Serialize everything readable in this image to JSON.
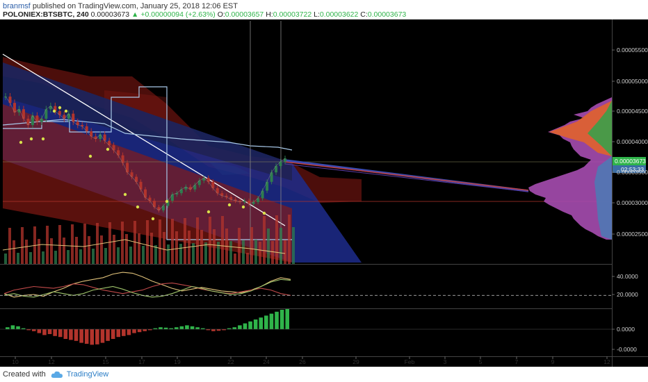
{
  "header": {
    "author": "branmsf",
    "published": "published on TradingView.com, January 25, 2018 12:06 EST",
    "symbol": "POLONIEX:BTSBTC, 240",
    "price": "0.00003673",
    "change": "+0.00000094 (+2.63%)",
    "open_label": "O:",
    "open": "0.00003657",
    "high_label": "H:",
    "high": "0.00003722",
    "low_label": "L:",
    "low": "0.00003622",
    "close_label": "C:",
    "close": "0.00003673"
  },
  "chart_data": {
    "type": "line",
    "main_axis": {
      "ticks": [
        "0.00005500",
        "0.00005000",
        "0.00004500",
        "0.00004000",
        "0.00003500",
        "0.00003000",
        "0.00002500"
      ],
      "price_tag": "0.00003673",
      "countdown": "02:53:33"
    },
    "indicator1_axis": {
      "ticks": [
        "40.0000",
        "20.0000"
      ]
    },
    "indicator2_axis": {
      "ticks": [
        "0.0000",
        "-0.0000"
      ]
    },
    "x_axis": {
      "ticks": [
        "10",
        "12",
        "15",
        "17",
        "19",
        "22",
        "24",
        "26",
        "29",
        "Feb",
        "3",
        "5",
        "7",
        "9",
        "12"
      ]
    },
    "price_series": {
      "name": "",
      "values": [
        4.65e-05,
        4.55e-05,
        4.4e-05,
        4.45e-05,
        4.3e-05,
        4.2e-05,
        4.35e-05,
        4.25e-05,
        4.3e-05,
        4.45e-05,
        4.5e-05,
        4.42e-05,
        4.36e-05,
        4.3e-05,
        4.38e-05,
        4.25e-05,
        4.2e-05,
        4.18e-05,
        4.1e-05,
        4.02e-05,
        3.98e-05,
        4.05e-05,
        3.95e-05,
        3.88e-05,
        3.8e-05,
        3.72e-05,
        3.6e-05,
        3.45e-05,
        3.38e-05,
        3.3e-05,
        3.18e-05,
        3.05e-05,
        3e-05,
        2.9e-05,
        2.85e-05,
        2.92e-05,
        3e-05,
        3.1e-05,
        3.12e-05,
        3.18e-05,
        3.22e-05,
        3.18e-05,
        3.25e-05,
        3.32e-05,
        3.36e-05,
        3.3e-05,
        3.2e-05,
        3.12e-05,
        3.08e-05,
        3.06e-05,
        3.02e-05,
        3e-05,
        2.98e-05,
        3e-05,
        2.95e-05,
        2.98e-05,
        3.04e-05,
        3.16e-05,
        3.3e-05,
        3.45e-05,
        3.55e-05,
        3.62e-05,
        3.67e-05
      ]
    },
    "oscillator": {
      "series": [
        {
          "name": "",
          "color": "#e0c27a",
          "values": [
            22,
            18,
            20,
            21,
            19,
            24,
            28,
            33,
            36,
            38,
            40,
            44,
            46,
            45,
            41,
            36,
            32,
            28,
            25,
            27,
            29,
            27,
            25,
            24,
            23,
            26,
            30,
            36,
            40,
            38
          ]
        },
        {
          "name": "",
          "color": "#c24a4a",
          "values": [
            22,
            26,
            28,
            30,
            29,
            28,
            30,
            33,
            32,
            29,
            26,
            24,
            22,
            24,
            26,
            30,
            33,
            34,
            32,
            30,
            27,
            25,
            23,
            22,
            24,
            26,
            28,
            26,
            22,
            20
          ]
        },
        {
          "name": "",
          "color": "#9ec36a",
          "values": [
            20,
            22,
            19,
            18,
            21,
            24,
            22,
            20,
            22,
            26,
            28,
            30,
            27,
            23,
            20,
            18,
            19,
            22,
            26,
            30,
            28,
            25,
            23,
            21,
            22,
            25,
            30,
            35,
            38,
            37
          ]
        }
      ],
      "ref_line": 20
    },
    "histogram": {
      "values": [
        0.1,
        0.2,
        0.15,
        0.05,
        -0.05,
        -0.1,
        -0.2,
        -0.3,
        -0.25,
        -0.35,
        -0.4,
        -0.5,
        -0.55,
        -0.6,
        -0.7,
        -0.75,
        -0.8,
        -0.78,
        -0.7,
        -0.6,
        -0.5,
        -0.4,
        -0.35,
        -0.3,
        -0.2,
        -0.15,
        -0.1,
        -0.05,
        0.05,
        0.1,
        0.08,
        0.05,
        0.1,
        0.15,
        0.2,
        0.15,
        0.1,
        0.05,
        -0.05,
        -0.1,
        -0.08,
        -0.05,
        0.05,
        0.1,
        0.2,
        0.3,
        0.4,
        0.5,
        0.6,
        0.7,
        0.8,
        0.9,
        1.0,
        1.05
      ]
    }
  },
  "colors": {
    "background": "#000000",
    "up": "#2e7d4f",
    "down": "#b3342c",
    "axis_text": "#cfcfcf",
    "accent_blue": "#1d2b8c",
    "accent_red": "#8a1a14",
    "price_tag": "#2fb44a",
    "countdown_tag": "#3b6ea5",
    "white_line": "#ffffff",
    "light_blue_line": "#a8c8e8"
  },
  "footer": {
    "created_with": "Created with",
    "brand": "TradingView"
  }
}
